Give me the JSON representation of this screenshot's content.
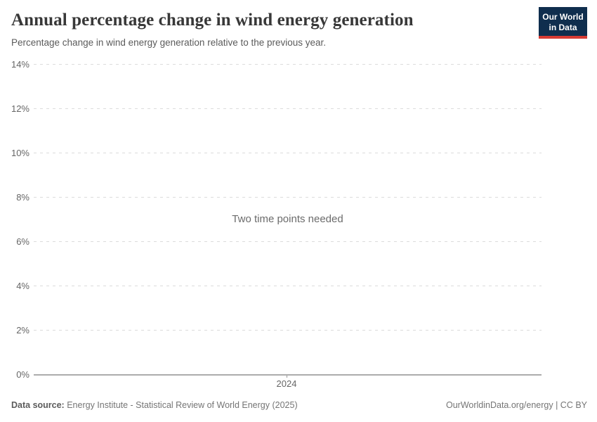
{
  "header": {
    "title": "Annual percentage change in wind energy generation",
    "subtitle": "Percentage change in wind energy generation relative to the previous year.",
    "logo": {
      "line1": "Our World",
      "line2": "in Data",
      "bg_color": "#0f2e4e",
      "accent_color": "#d73b33"
    }
  },
  "chart_data": {
    "type": "line",
    "title": "Annual percentage change in wind energy generation",
    "series": [],
    "empty_state_message": "Two time points needed",
    "y_ticks": [
      "0%",
      "2%",
      "4%",
      "6%",
      "8%",
      "10%",
      "12%",
      "14%"
    ],
    "x_ticks": [
      "2024"
    ],
    "ylim": [
      0,
      14
    ],
    "grid": "horizontal dashed, solid baseline at 0%",
    "legend": "none"
  },
  "footer": {
    "datasource_label": "Data source:",
    "datasource_value": "Energy Institute - Statistical Review of World Energy (2025)",
    "rights": "OurWorldinData.org/energy | CC BY"
  }
}
